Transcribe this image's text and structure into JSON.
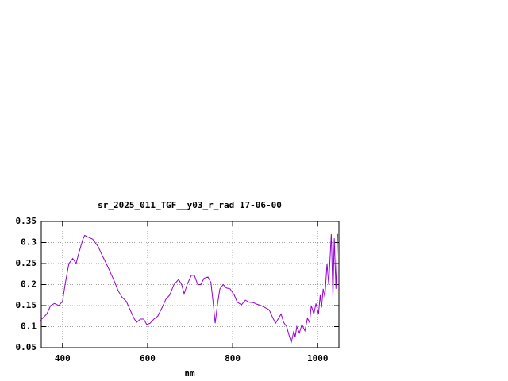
{
  "chart_data": {
    "type": "line",
    "title": "sr_2025_011_TGF__y03_r_rad 17-06-00",
    "x_label": "nm",
    "x": [
      348,
      363,
      372,
      381,
      391,
      400,
      406,
      415,
      424,
      432,
      437,
      447,
      452,
      460,
      471,
      484,
      493,
      503,
      512,
      521,
      531,
      540,
      550,
      559,
      568,
      574,
      583,
      591,
      598,
      606,
      615,
      624,
      634,
      643,
      652,
      662,
      673,
      680,
      686,
      693,
      703,
      710,
      718,
      725,
      733,
      742,
      749,
      755,
      759,
      764,
      770,
      778,
      785,
      794,
      804,
      811,
      821,
      830,
      839,
      849,
      858,
      867,
      877,
      886,
      895,
      901,
      908,
      914,
      920,
      927,
      934,
      938,
      944,
      947,
      951,
      957,
      963,
      970,
      976,
      981,
      985,
      991,
      996,
      1002,
      1006,
      1009,
      1013,
      1017,
      1022,
      1026,
      1032,
      1036,
      1039,
      1043,
      1047
    ],
    "values": [
      0.115,
      0.13,
      0.15,
      0.155,
      0.15,
      0.16,
      0.2,
      0.25,
      0.262,
      0.25,
      0.27,
      0.305,
      0.317,
      0.313,
      0.308,
      0.29,
      0.27,
      0.25,
      0.23,
      0.21,
      0.185,
      0.17,
      0.16,
      0.14,
      0.12,
      0.11,
      0.118,
      0.118,
      0.105,
      0.108,
      0.118,
      0.125,
      0.145,
      0.165,
      0.175,
      0.2,
      0.212,
      0.2,
      0.178,
      0.2,
      0.222,
      0.222,
      0.2,
      0.2,
      0.215,
      0.218,
      0.205,
      0.15,
      0.108,
      0.15,
      0.19,
      0.2,
      0.192,
      0.19,
      0.175,
      0.158,
      0.152,
      0.163,
      0.158,
      0.157,
      0.153,
      0.15,
      0.145,
      0.14,
      0.12,
      0.108,
      0.12,
      0.13,
      0.11,
      0.1,
      0.075,
      0.063,
      0.09,
      0.075,
      0.1,
      0.085,
      0.105,
      0.09,
      0.12,
      0.11,
      0.15,
      0.13,
      0.155,
      0.13,
      0.175,
      0.145,
      0.19,
      0.17,
      0.25,
      0.2,
      0.32,
      0.17,
      0.31,
      0.19,
      0.32
    ],
    "color": "#9400d3",
    "xlim": [
      350,
      1050
    ],
    "xticks": [
      400,
      600,
      800,
      1000
    ],
    "ylim": [
      0.05,
      0.35
    ],
    "yticks": [
      0.05,
      0.1,
      0.15,
      0.2,
      0.25,
      0.3,
      0.35
    ],
    "grid": true
  }
}
